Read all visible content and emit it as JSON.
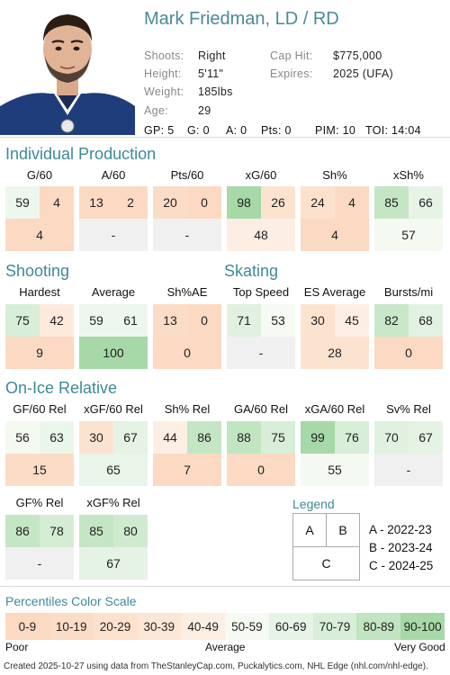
{
  "player": {
    "name": "Mark Friedman, LD / RD",
    "shoots_label": "Shoots:",
    "shoots": "Right",
    "height_label": "Height:",
    "height": "5'11\"",
    "weight_label": "Weight:",
    "weight": "185lbs",
    "age_label": "Age:",
    "age": "29",
    "caphit_label": "Cap Hit:",
    "caphit": "$775,000",
    "expires_label": "Expires:",
    "expires": "2025 (UFA)",
    "gp": "GP: 5",
    "g": "G: 0",
    "a": "A: 0",
    "pts": "Pts: 0",
    "pim": "PIM: 10",
    "toi": "TOI: 14:04"
  },
  "sections": {
    "production": "Individual Production",
    "shooting": "Shooting",
    "skating": "Skating",
    "onice": "On-Ice Relative"
  },
  "production": [
    {
      "label": "G/60",
      "a": "59",
      "b": "4",
      "c": "4",
      "ca": "#eef7ee",
      "cb": "#fbd9c2",
      "cc": "#fbd9c2"
    },
    {
      "label": "A/60",
      "a": "13",
      "b": "2",
      "c": "-",
      "ca": "#fbd9c2",
      "cb": "#fbd9c2",
      "cc": "#f0f0f0"
    },
    {
      "label": "Pts/60",
      "a": "20",
      "b": "0",
      "c": "-",
      "ca": "#fbdcc6",
      "cb": "#fbd9c2",
      "cc": "#f0f0f0"
    },
    {
      "label": "xG/60",
      "a": "98",
      "b": "26",
      "c": "48",
      "ca": "#a7d8a7",
      "cb": "#fce3d0",
      "cc": "#fdeee3"
    },
    {
      "label": "Sh%",
      "a": "24",
      "b": "4",
      "c": "4",
      "ca": "#fce1cc",
      "cb": "#fbd9c2",
      "cc": "#fbd9c2"
    },
    {
      "label": "xSh%",
      "a": "85",
      "b": "66",
      "c": "57",
      "ca": "#c5e6c5",
      "cb": "#e6f4e6",
      "cc": "#f4f9f2"
    }
  ],
  "shooting": [
    {
      "label": "Hardest",
      "a": "75",
      "b": "42",
      "c": "9",
      "ca": "#d8eed8",
      "cb": "#fdeadd",
      "cc": "#fbd9c2"
    },
    {
      "label": "Average",
      "a": "59",
      "b": "61",
      "c": "100",
      "ca": "#eef7ee",
      "cb": "#edf7ed",
      "cc": "#a7d8a7"
    },
    {
      "label": "Sh%AE",
      "a": "13",
      "b": "0",
      "c": "0",
      "ca": "#fbdcc6",
      "cb": "#fbd9c2",
      "cc": "#fbd9c2"
    }
  ],
  "skating": [
    {
      "label": "Top Speed",
      "a": "71",
      "b": "53",
      "c": "-",
      "ca": "#e0f1e0",
      "cb": "#f5faf3",
      "cc": "#f0f0f0"
    },
    {
      "label": "ES Average",
      "a": "30",
      "b": "45",
      "c": "28",
      "ca": "#fce3d0",
      "cb": "#fdeee3",
      "cc": "#fce3d0"
    },
    {
      "label": "Bursts/mi",
      "a": "82",
      "b": "68",
      "c": "0",
      "ca": "#c9e7c9",
      "cb": "#e2f2e2",
      "cc": "#fbd9c2"
    }
  ],
  "onice": [
    {
      "label": "GF/60 Rel",
      "a": "56",
      "b": "63",
      "c": "15",
      "ca": "#f4f9f2",
      "cb": "#ebf6eb",
      "cc": "#fbdcc6"
    },
    {
      "label": "xGF/60 Rel",
      "a": "30",
      "b": "67",
      "c": "65",
      "ca": "#fce3d0",
      "cb": "#e4f3e4",
      "cc": "#e8f5e8"
    },
    {
      "label": "Sh% Rel",
      "a": "44",
      "b": "86",
      "c": "7",
      "ca": "#fdeee3",
      "cb": "#c5e6c5",
      "cc": "#fbd9c2"
    },
    {
      "label": "GA/60 Rel",
      "a": "88",
      "b": "75",
      "c": "0",
      "ca": "#c1e4c1",
      "cb": "#d8eed8",
      "cc": "#fbd9c2"
    },
    {
      "label": "xGA/60 Rel",
      "a": "99",
      "b": "76",
      "c": "55",
      "ca": "#a7d8a7",
      "cb": "#d8eed8",
      "cc": "#f4f9f2"
    },
    {
      "label": "Sv% Rel",
      "a": "70",
      "b": "67",
      "c": "-",
      "ca": "#e0f1e0",
      "cb": "#e4f3e4",
      "cc": "#f0f0f0"
    },
    {
      "label": "GF% Rel",
      "a": "86",
      "b": "78",
      "c": "-",
      "ca": "#c5e6c5",
      "cb": "#d4ecd4",
      "cc": "#f0f0f0"
    },
    {
      "label": "xGF% Rel",
      "a": "85",
      "b": "80",
      "c": "67",
      "ca": "#c5e6c5",
      "cb": "#d0eacf",
      "cc": "#e4f3e4"
    }
  ],
  "legend": {
    "title": "Legend",
    "a": "A",
    "b": "B",
    "c": "C",
    "a_text": "A - 2022-23",
    "b_text": "B - 2023-24",
    "c_text": "C - 2024-25"
  },
  "scale": {
    "title": "Percentiles Color Scale",
    "bins": [
      {
        "label": "0-9",
        "color": "#fbd9c2"
      },
      {
        "label": "10-19",
        "color": "#fbdcc6"
      },
      {
        "label": "20-29",
        "color": "#fce1cc"
      },
      {
        "label": "30-39",
        "color": "#fce6d6"
      },
      {
        "label": "40-49",
        "color": "#fdeee3"
      },
      {
        "label": "50-59",
        "color": "#f5faf3"
      },
      {
        "label": "60-69",
        "color": "#e6f4e6"
      },
      {
        "label": "70-79",
        "color": "#d8eed8"
      },
      {
        "label": "80-89",
        "color": "#c1e4c1"
      },
      {
        "label": "90-100",
        "color": "#a7d8a7"
      }
    ],
    "poor": "Poor",
    "average": "Average",
    "very_good": "Very Good"
  },
  "footer": "Created 2025-10-27 using data from TheStanleyCap.com, Puckalytics.com, NHL Edge (nhl.com/nhl-edge)."
}
